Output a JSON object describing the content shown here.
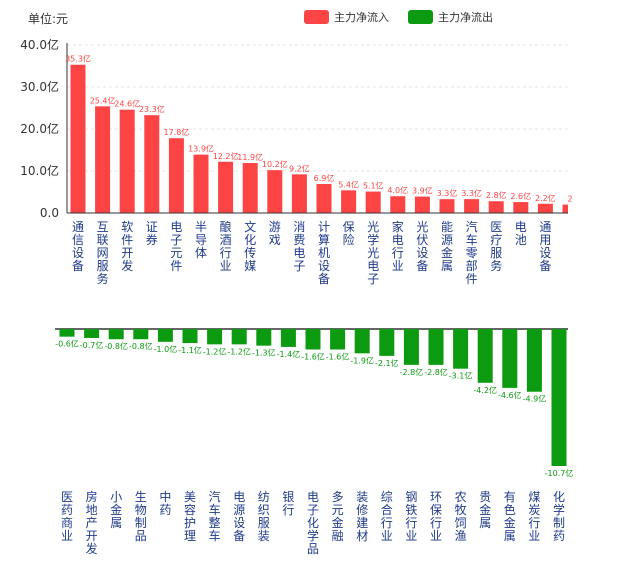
{
  "unit_label": "单位:元",
  "legend": [
    {
      "label": "主力净流入",
      "color": "#fd4444"
    },
    {
      "label": "主力净流出",
      "color": "#0b9a10"
    }
  ],
  "chart_data": [
    {
      "type": "bar",
      "series_name": "主力净流入",
      "color": "#fd4444",
      "ylim": [
        0,
        40
      ],
      "yticks": [
        "0.0",
        "10.0亿",
        "20.0亿",
        "30.0亿",
        "40.0亿"
      ],
      "grid": true,
      "categories": [
        "通信设备",
        "互联网服务",
        "软件开发",
        "证券",
        "电子元件",
        "半导体",
        "酿酒行业",
        "文化传媒",
        "游戏",
        "消费电子",
        "计算机设备",
        "保险",
        "光学光电子",
        "家电行业",
        "光伏设备",
        "能源金属",
        "汽车零部件",
        "医疗服务",
        "电池",
        "通用设备",
        ""
      ],
      "values": [
        35.3,
        25.4,
        24.6,
        23.3,
        17.8,
        13.9,
        12.2,
        11.9,
        10.2,
        9.2,
        6.9,
        5.4,
        5.1,
        4.0,
        3.9,
        3.3,
        3.3,
        2.8,
        2.6,
        2.2,
        2.0
      ],
      "labels": [
        "35.3亿",
        "25.4亿",
        "24.6亿",
        "23.3亿",
        "17.8亿",
        "13.9亿",
        "12.2亿",
        "11.9亿",
        "10.2亿",
        "9.2亿",
        "6.9亿",
        "5.4亿",
        "5.1亿",
        "4.0亿",
        "3.9亿",
        "3.3亿",
        "3.3亿",
        "2.8亿",
        "2.6亿",
        "2.2亿",
        "2"
      ]
    },
    {
      "type": "bar",
      "series_name": "主力净流出",
      "color": "#0b9a10",
      "categories": [
        "医药商业",
        "房地产开发",
        "小金属",
        "生物制品",
        "中药",
        "美容护理",
        "汽车整车",
        "电源设备",
        "纺织服装",
        "银行",
        "电子化学品",
        "多元金融",
        "装修建材",
        "综合行业",
        "钢铁行业",
        "环保行业",
        "农牧饲渔",
        "贵金属",
        "有色金属",
        "煤炭行业",
        "化学制药"
      ],
      "values": [
        -0.6,
        -0.7,
        -0.8,
        -0.8,
        -1.0,
        -1.1,
        -1.2,
        -1.2,
        -1.3,
        -1.4,
        -1.6,
        -1.6,
        -1.9,
        -2.1,
        -2.8,
        -2.8,
        -3.1,
        -4.2,
        -4.6,
        -4.9,
        -10.7
      ],
      "labels": [
        "-0.6亿",
        "-0.7亿",
        "-0.8亿",
        "-0.8亿",
        "-1.0亿",
        "-1.1亿",
        "-1.2亿",
        "-1.2亿",
        "-1.3亿",
        "-1.4亿",
        "-1.6亿",
        "-1.6亿",
        "-1.9亿",
        "-2.1亿",
        "-2.8亿",
        "-2.8亿",
        "-3.1亿",
        "-4.2亿",
        "-4.6亿",
        "-4.9亿",
        "-10.7亿"
      ]
    }
  ]
}
